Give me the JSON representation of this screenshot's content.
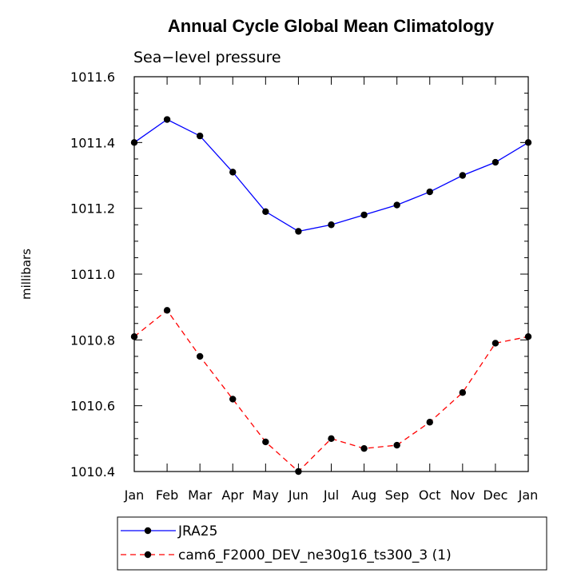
{
  "chart_data": {
    "type": "line",
    "title": "Annual Cycle Global Mean Climatology",
    "subtitle": "Sea−level pressure",
    "xlabel": "",
    "ylabel": "millibars",
    "categories": [
      "Jan",
      "Feb",
      "Mar",
      "Apr",
      "May",
      "Jun",
      "Jul",
      "Aug",
      "Sep",
      "Oct",
      "Nov",
      "Dec",
      "Jan"
    ],
    "ylim": [
      1010.4,
      1011.6
    ],
    "yticks": [
      1010.4,
      1010.6,
      1010.8,
      1011.0,
      1011.2,
      1011.4,
      1011.6
    ],
    "ytick_labels": [
      "1010.4",
      "1010.6",
      "1010.8",
      "1011.0",
      "1011.2",
      "1011.4",
      "1011.6"
    ],
    "grid": false,
    "legend_position": "bottom",
    "series": [
      {
        "name": "JRA25",
        "color": "#0000ff",
        "dash": "solid",
        "marker_color": "#000000",
        "values": [
          1011.4,
          1011.47,
          1011.42,
          1011.31,
          1011.19,
          1011.13,
          1011.15,
          1011.18,
          1011.21,
          1011.25,
          1011.3,
          1011.34,
          1011.4
        ]
      },
      {
        "name": "cam6_F2000_DEV_ne30g16_ts300_3 (1)",
        "color": "#ff0000",
        "dash": "dashed",
        "marker_color": "#000000",
        "values": [
          1010.81,
          1010.89,
          1010.75,
          1010.62,
          1010.49,
          1010.4,
          1010.5,
          1010.47,
          1010.48,
          1010.55,
          1010.64,
          1010.79,
          1010.81
        ]
      }
    ]
  }
}
